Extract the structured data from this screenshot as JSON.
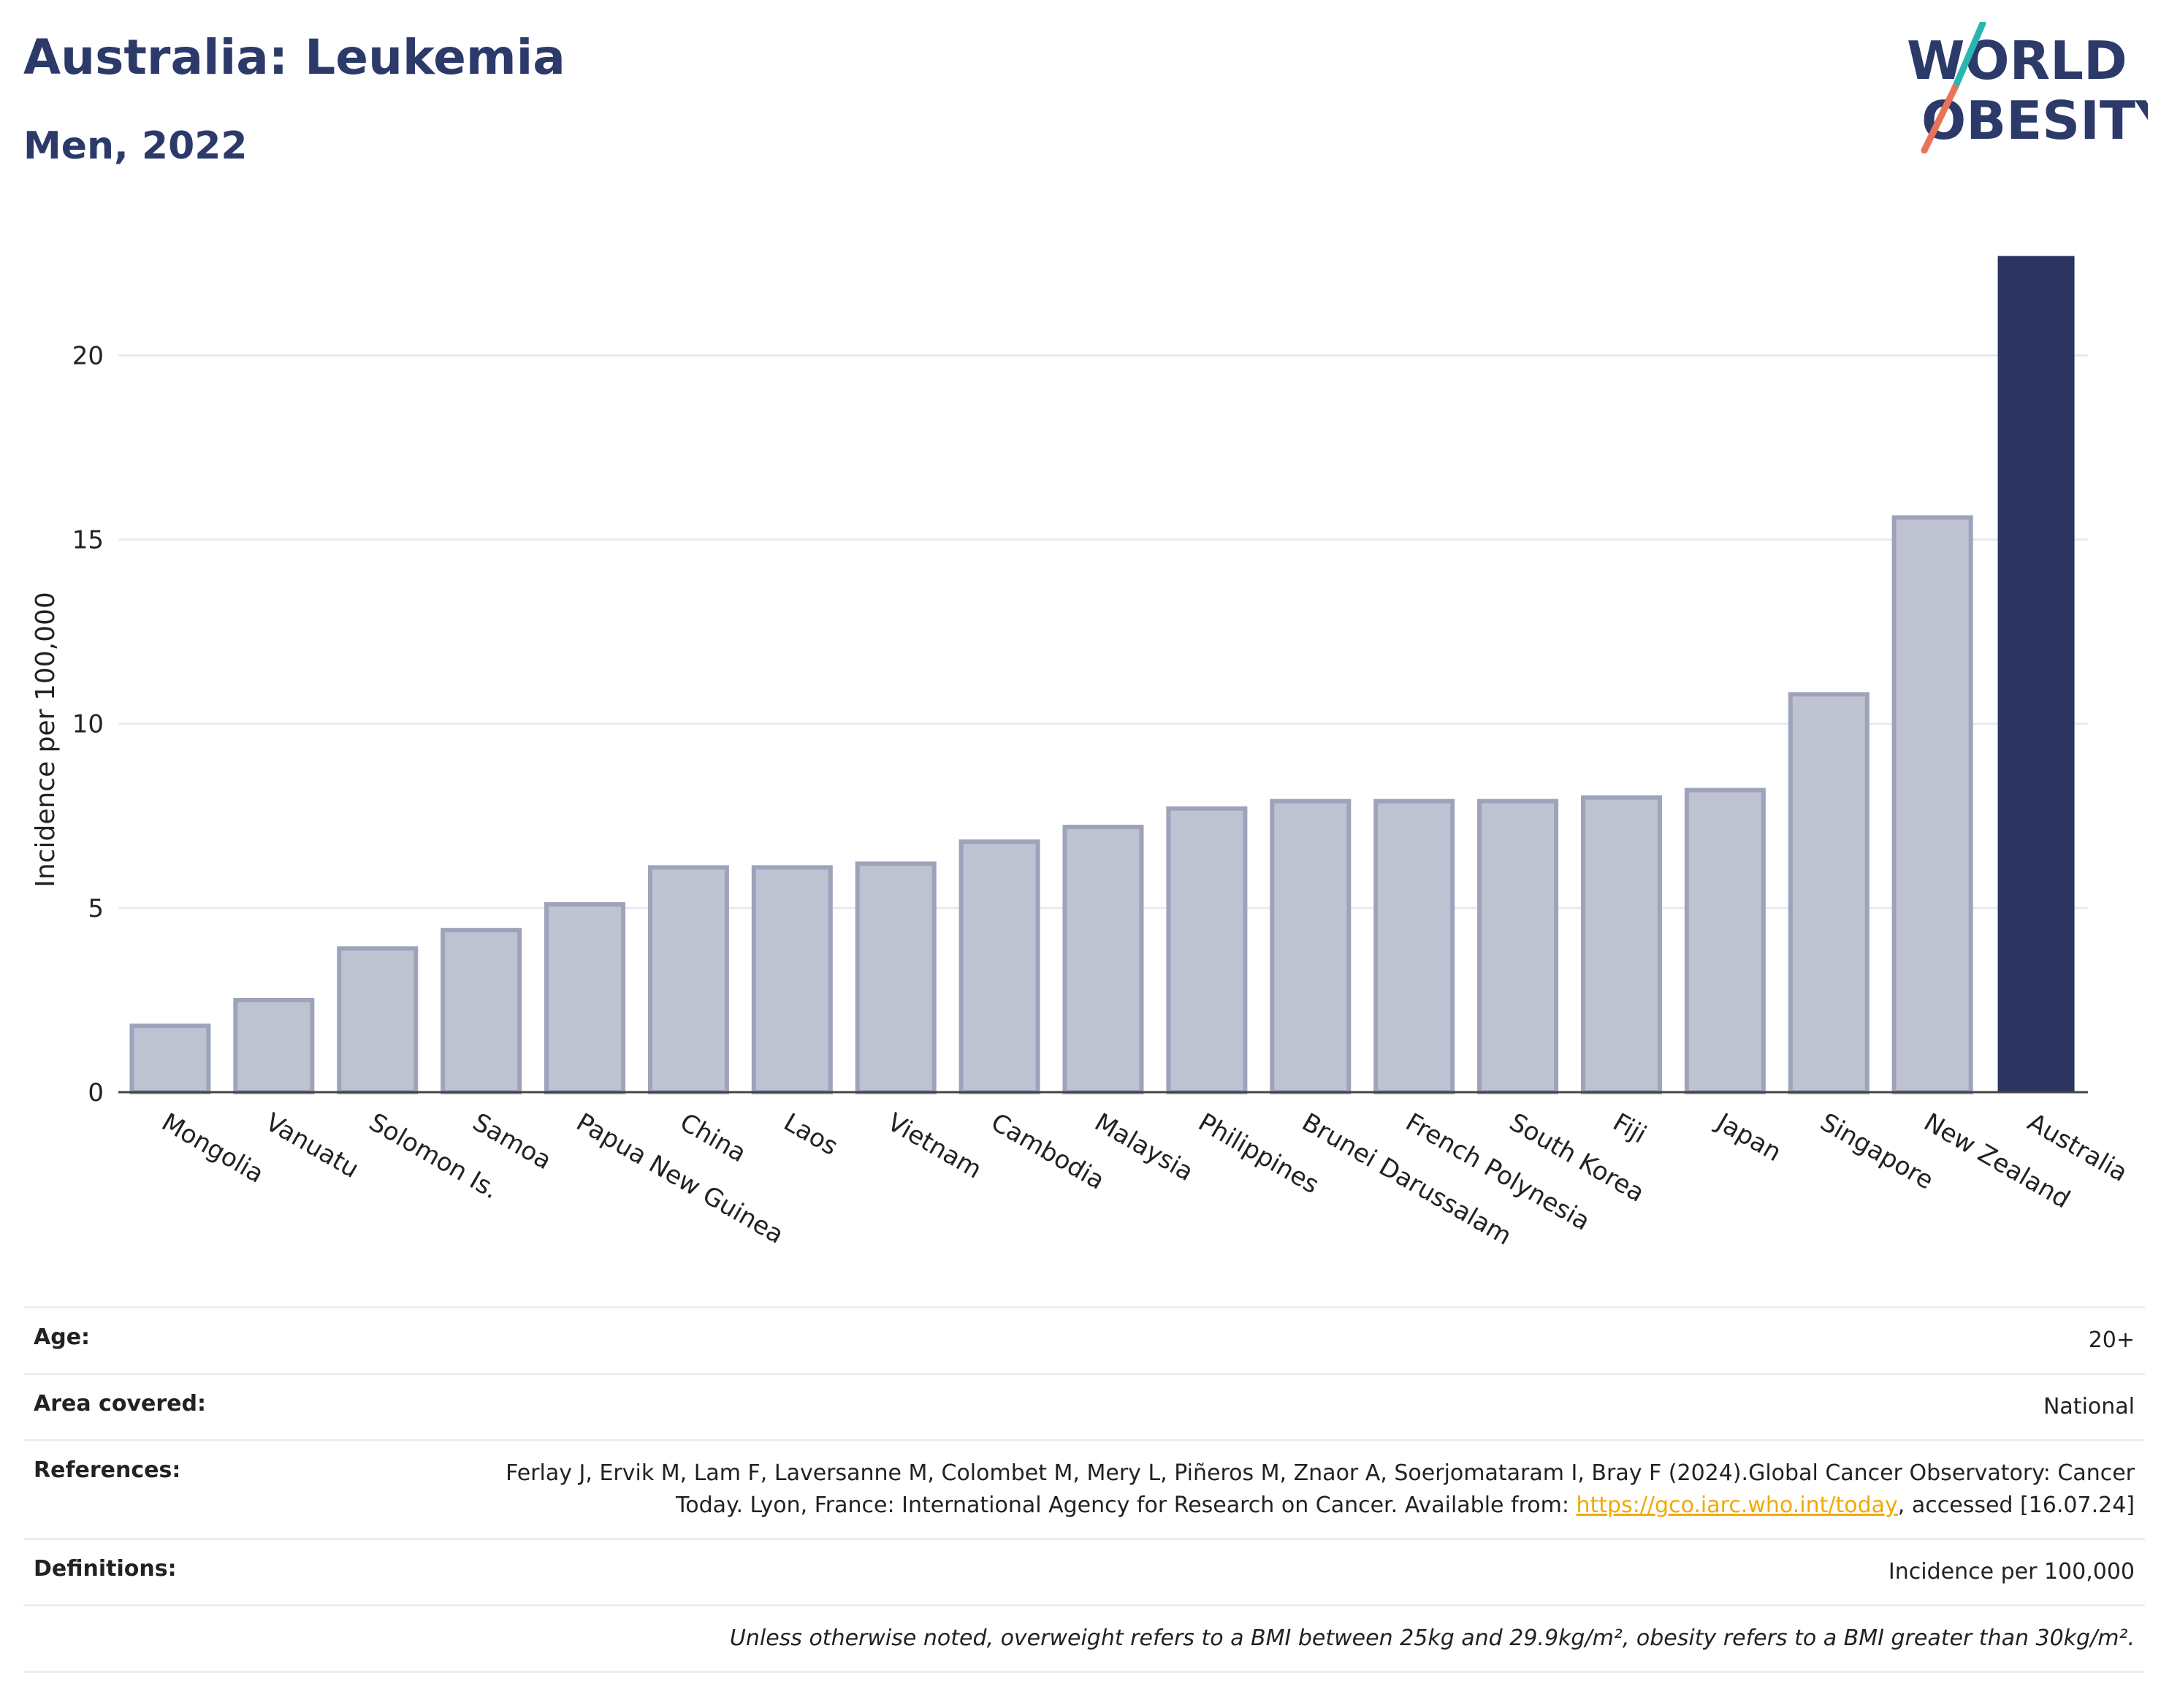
{
  "header": {
    "title": "Australia: Leukemia",
    "subtitle": "Men, 2022"
  },
  "logo": {
    "line1": "WORLD",
    "line2": "OBESITY",
    "accent_colors": [
      "#2bb5b0",
      "#e8735a"
    ]
  },
  "colors": {
    "highlight_bar": "#2c3561",
    "default_bar_fill": "#bfc3d1",
    "default_bar_stroke": "#9da3ba",
    "gridline": "#e8eaf0",
    "link": "#f2a900"
  },
  "chart_data": {
    "type": "bar",
    "ylabel": "Incidence per 100,000",
    "xlabel": "",
    "ylim": [
      0,
      23.5
    ],
    "yticks": [
      0,
      5,
      10,
      15,
      20
    ],
    "grid": true,
    "highlight": "Australia",
    "categories": [
      "Mongolia",
      "Vanuatu",
      "Solomon Is.",
      "Samoa",
      "Papua New Guinea",
      "China",
      "Laos",
      "Vietnam",
      "Cambodia",
      "Malaysia",
      "Philippines",
      "Brunei Darussalam",
      "French Polynesia",
      "South Korea",
      "Fiji",
      "Japan",
      "Singapore",
      "New Zealand",
      "Australia"
    ],
    "values": [
      1.8,
      2.5,
      3.9,
      4.4,
      5.1,
      6.1,
      6.1,
      6.2,
      6.8,
      7.2,
      7.7,
      7.9,
      7.9,
      7.9,
      8.0,
      8.2,
      10.8,
      15.6,
      22.7
    ]
  },
  "info": {
    "age_label": "Age:",
    "age_value": "20+",
    "area_label": "Area covered:",
    "area_value": "National",
    "references_label": "References:",
    "references_text_before": "Ferlay J, Ervik M, Lam F, Laversanne M, Colombet M, Mery L, Piñeros M, Znaor A, Soerjomataram I, Bray F (2024).Global Cancer Observatory: Cancer Today. Lyon, France: International Agency for Research on Cancer. Available from: ",
    "references_link": "https://gco.iarc.who.int/today",
    "references_text_after": ", accessed [16.07.24]",
    "definitions_label": "Definitions:",
    "definitions_value": "Incidence per 100,000",
    "note": "Unless otherwise noted, overweight refers to a BMI between 25kg and 29.9kg/m², obesity refers to a BMI greater than 30kg/m²."
  }
}
